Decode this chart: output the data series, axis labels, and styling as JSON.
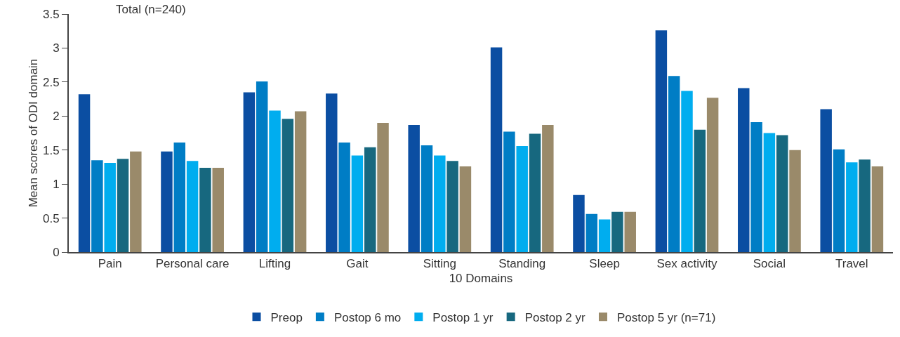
{
  "chart_data": {
    "type": "bar",
    "xlabel": "10 Domains",
    "ylabel": "Mean scores of ODI domain",
    "annotations": [
      "Total (n=240)"
    ],
    "categories": [
      "Pain",
      "Personal care",
      "Lifting",
      "Gait",
      "Sitting",
      "Standing",
      "Sleep",
      "Sex activity",
      "Social",
      "Travel"
    ],
    "series": [
      {
        "name": "Preop",
        "color": "#0b4ea2",
        "values": [
          2.32,
          1.48,
          2.35,
          2.33,
          1.87,
          3.01,
          0.84,
          3.26,
          2.41,
          2.1
        ]
      },
      {
        "name": "Postop 6 mo",
        "color": "#007dc5",
        "values": [
          1.35,
          1.61,
          2.51,
          1.61,
          1.57,
          1.77,
          0.56,
          2.59,
          1.91,
          1.51
        ]
      },
      {
        "name": "Postop 1 yr",
        "color": "#00adef",
        "values": [
          1.31,
          1.34,
          2.08,
          1.42,
          1.42,
          1.56,
          0.48,
          2.37,
          1.75,
          1.32
        ]
      },
      {
        "name": "Postop 2 yr",
        "color": "#17687f",
        "values": [
          1.37,
          1.24,
          1.96,
          1.54,
          1.34,
          1.74,
          0.59,
          1.8,
          1.72,
          1.36
        ]
      },
      {
        "name": "Postop 5 yr (n=71)",
        "color": "#9a8a6a",
        "values": [
          1.48,
          1.24,
          2.07,
          1.9,
          1.26,
          1.87,
          0.59,
          2.27,
          1.5,
          1.26
        ]
      }
    ],
    "ylim": [
      0,
      3.5
    ],
    "yticks": [
      0,
      0.5,
      1,
      1.5,
      2,
      2.5,
      3,
      3.5
    ],
    "grid": false,
    "legend": "bottom"
  }
}
